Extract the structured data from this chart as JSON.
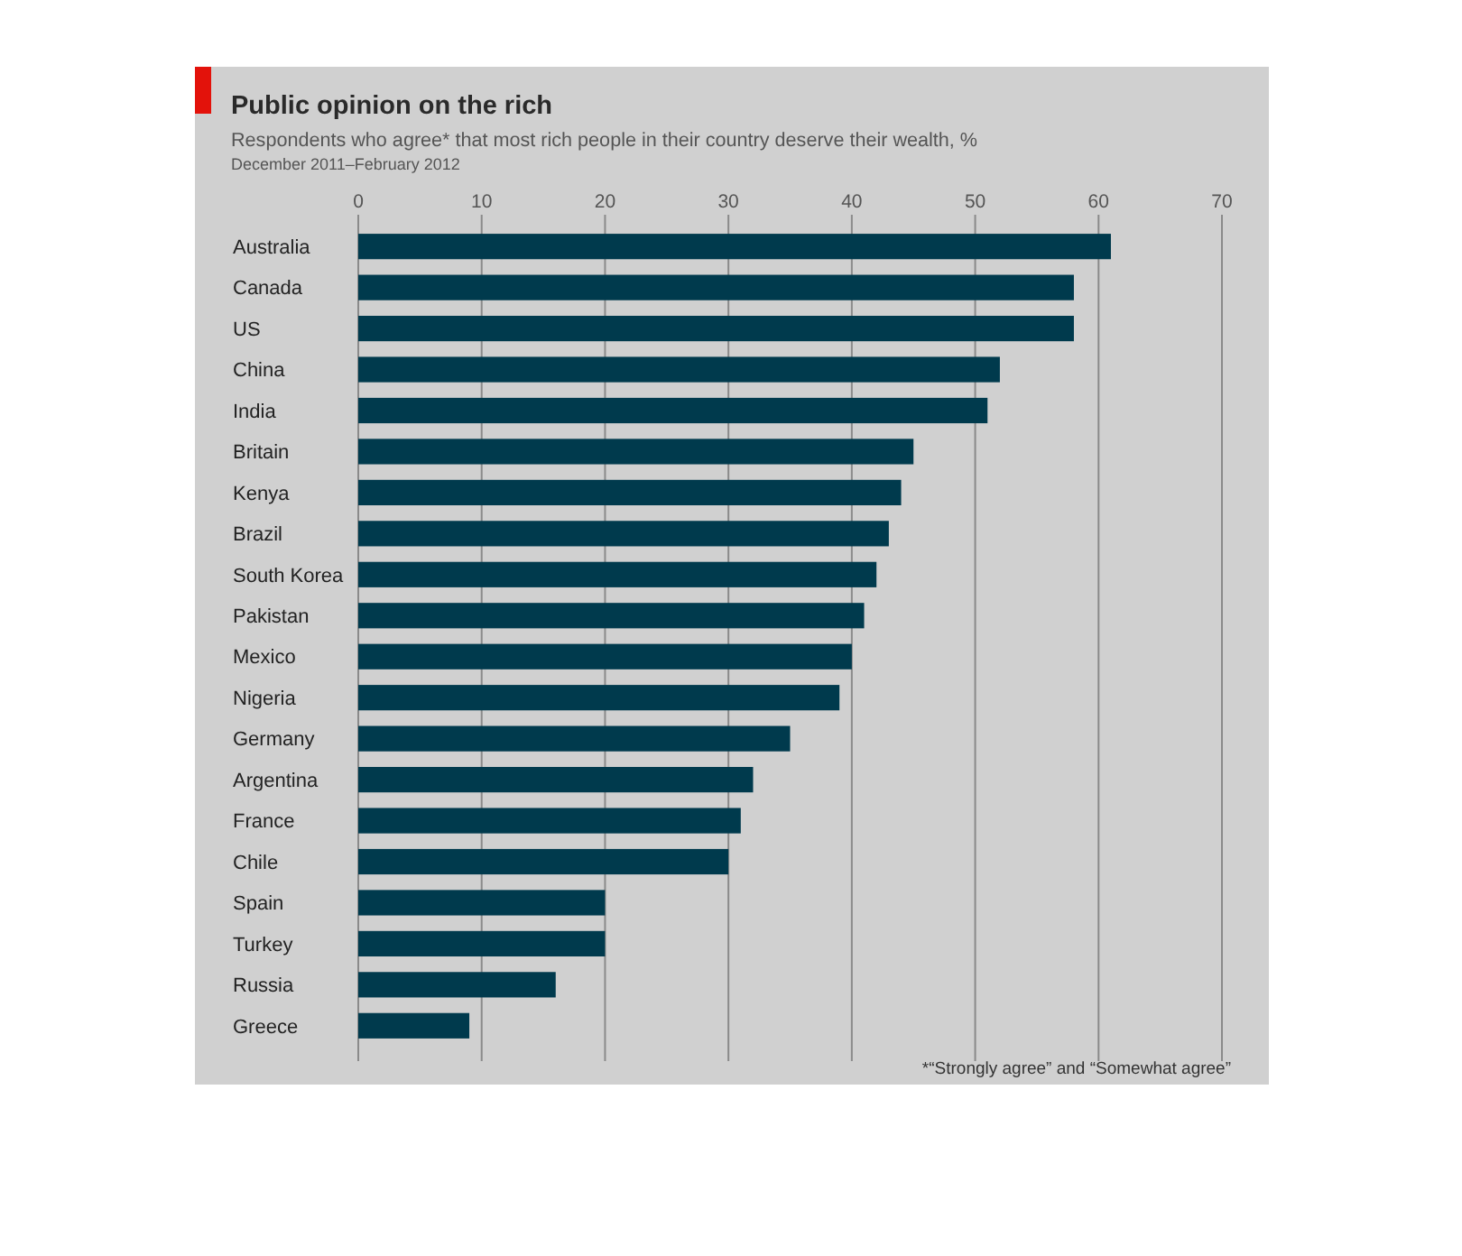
{
  "chart_data": {
    "type": "bar",
    "orientation": "horizontal",
    "title": "Public opinion on the rich",
    "subtitle": "Respondents who agree* that most rich people in their country deserve their wealth, %\nDecember 2011–February 2012",
    "categories": [
      "Australia",
      "Canada",
      "US",
      "China",
      "India",
      "Britain",
      "Kenya",
      "Brazil",
      "South Korea",
      "Pakistan",
      "Mexico",
      "Nigeria",
      "Germany",
      "Argentina",
      "France",
      "Chile",
      "Spain",
      "Turkey",
      "Russia",
      "Greece"
    ],
    "values": [
      61,
      58,
      58,
      52,
      51,
      45,
      44,
      43,
      42,
      41,
      40,
      39,
      35,
      32,
      31,
      30,
      20,
      20,
      16,
      9
    ],
    "color": "#003a4d",
    "xlim": [
      0,
      70
    ],
    "xticks": [
      0,
      10,
      20,
      30,
      40,
      50,
      60,
      70
    ],
    "grid": "x",
    "annotations": [
      "*“Strongly agree” and “Somewhat agree”"
    ]
  }
}
